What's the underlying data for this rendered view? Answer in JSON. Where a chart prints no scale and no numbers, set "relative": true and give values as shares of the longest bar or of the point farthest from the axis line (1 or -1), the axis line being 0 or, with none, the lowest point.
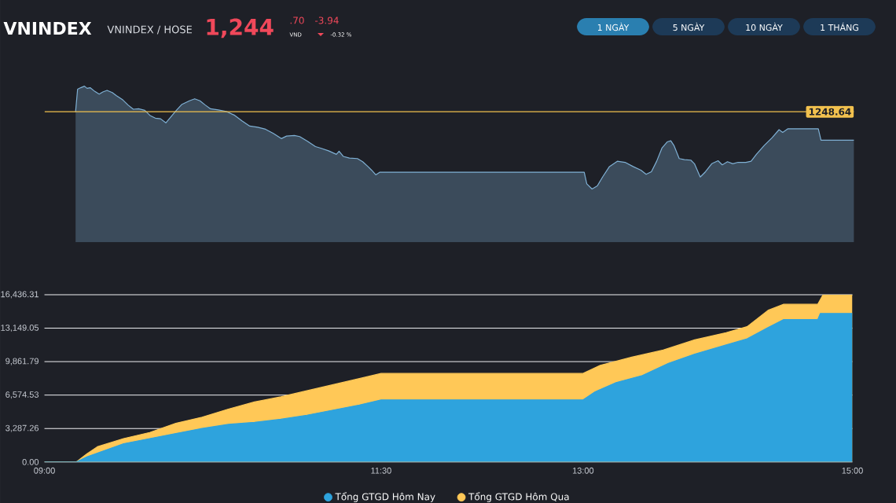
{
  "chart_data": [
    {
      "type": "area",
      "title": "VNINDEX",
      "subtitle": "VNINDEX / HOSE",
      "relative": true,
      "annotations": [
        "1,244",
        ".70",
        "VND",
        "-3.94",
        "-0.32 %",
        "1 NGÀY",
        "5 NGÀY",
        "10 NGÀY",
        "1 THÁNG",
        "1248.64"
      ],
      "xlim": [
        9,
        15
      ],
      "ref_lines": [
        {
          "axis": "y",
          "value": 0.836,
          "color": "#f2c14e"
        }
      ],
      "series": [
        {
          "color": "#7fb0d4",
          "x": [
            9.23,
            9.245,
            9.268,
            9.296,
            9.315,
            9.338,
            9.373,
            9.405,
            9.432,
            9.463,
            9.502,
            9.533,
            9.58,
            9.619,
            9.658,
            9.697,
            9.743,
            9.782,
            9.821,
            9.86,
            9.899,
            9.938,
            9.977,
            10.016,
            10.074,
            10.113,
            10.152,
            10.191,
            10.23,
            10.288,
            10.346,
            10.405,
            10.463,
            10.521,
            10.58,
            10.638,
            10.696,
            10.755,
            10.794,
            10.852,
            10.891,
            10.949,
            11.008,
            11.047,
            11.105,
            11.163,
            11.183,
            11.214,
            11.26,
            11.319,
            11.358,
            11.397,
            11.424,
            11.455,
            11.486,
            13.0,
            13.019,
            13.058,
            13.097,
            13.136,
            13.187,
            13.245,
            13.303,
            13.362,
            13.42,
            13.459,
            13.498,
            13.537,
            13.576,
            13.615,
            13.642,
            13.665,
            13.704,
            13.743,
            13.79,
            13.817,
            13.86,
            13.899,
            13.945,
            13.992,
            14.023,
            14.062,
            14.101,
            14.14,
            14.198,
            14.237,
            14.276,
            14.334,
            14.393,
            14.444,
            14.471,
            14.51,
            14.735,
            14.755,
            15.0
          ],
          "values": [
            0.835,
            0.98,
            0.99,
            1.0,
            0.986,
            0.99,
            0.966,
            0.949,
            0.963,
            0.973,
            0.959,
            0.939,
            0.912,
            0.879,
            0.852,
            0.855,
            0.845,
            0.812,
            0.795,
            0.791,
            0.765,
            0.805,
            0.845,
            0.882,
            0.906,
            0.919,
            0.906,
            0.879,
            0.855,
            0.848,
            0.838,
            0.815,
            0.778,
            0.744,
            0.737,
            0.724,
            0.697,
            0.664,
            0.68,
            0.684,
            0.677,
            0.647,
            0.613,
            0.603,
            0.586,
            0.563,
            0.583,
            0.55,
            0.539,
            0.536,
            0.516,
            0.485,
            0.462,
            0.432,
            0.449,
            0.449,
            0.374,
            0.341,
            0.361,
            0.418,
            0.485,
            0.519,
            0.512,
            0.485,
            0.462,
            0.435,
            0.452,
            0.519,
            0.603,
            0.643,
            0.65,
            0.62,
            0.536,
            0.529,
            0.526,
            0.503,
            0.418,
            0.452,
            0.503,
            0.522,
            0.496,
            0.516,
            0.503,
            0.512,
            0.512,
            0.519,
            0.563,
            0.62,
            0.67,
            0.721,
            0.704,
            0.727,
            0.727,
            0.654,
            0.654
          ]
        }
      ]
    },
    {
      "type": "area",
      "xlim": [
        9,
        15
      ],
      "ylim": [
        0,
        16436.31
      ],
      "grid": "y",
      "legend": "bottom",
      "xticks": [
        {
          "value": 9,
          "label": "09:00"
        },
        {
          "value": 11.5,
          "label": "11:30"
        },
        {
          "value": 13,
          "label": "13:00"
        },
        {
          "value": 15,
          "label": "15:00"
        }
      ],
      "yticks": [
        {
          "value": 0,
          "label": "0.00"
        },
        {
          "value": 3287.26,
          "label": "3,287.26"
        },
        {
          "value": 6574.53,
          "label": "6,574.53"
        },
        {
          "value": 9861.79,
          "label": "9,861.79"
        },
        {
          "value": 13149.05,
          "label": "13,149.05"
        },
        {
          "value": 16436.31,
          "label": "16,436.31"
        }
      ],
      "series": [
        {
          "name": "Tổng GTGD Hôm Nay",
          "color": "#2ea3dd",
          "x": [
            9.0,
            9.237,
            9.315,
            9.588,
            9.782,
            9.976,
            10.171,
            10.366,
            10.56,
            10.755,
            10.949,
            11.144,
            11.339,
            11.5,
            13.0,
            13.089,
            13.245,
            13.44,
            13.634,
            13.829,
            14.062,
            14.218,
            14.373,
            14.49,
            14.743,
            14.762,
            15.0
          ],
          "values": [
            0,
            0,
            500,
            1800,
            2300,
            2800,
            3300,
            3700,
            3900,
            4200,
            4600,
            5100,
            5600,
            6100,
            6100,
            6900,
            7800,
            8500,
            9700,
            10600,
            11500,
            12100,
            13200,
            14000,
            14000,
            14600,
            14600
          ]
        },
        {
          "name": "Tổng GTGD Hôm Qua",
          "color": "#ffc857",
          "x": [
            9.0,
            9.237,
            9.315,
            9.393,
            9.588,
            9.782,
            9.976,
            10.171,
            10.366,
            10.56,
            10.755,
            10.949,
            11.144,
            11.339,
            11.5,
            13.0,
            13.128,
            13.362,
            13.595,
            13.829,
            14.062,
            14.218,
            14.373,
            14.49,
            14.743,
            14.782,
            15.0
          ],
          "values": [
            0,
            0,
            800,
            1500,
            2300,
            2900,
            3800,
            4400,
            5200,
            5900,
            6400,
            7000,
            7600,
            8200,
            8700,
            8700,
            9500,
            10300,
            11000,
            12000,
            12700,
            13300,
            14900,
            15500,
            15500,
            16436.31,
            16436.31
          ]
        }
      ]
    }
  ]
}
